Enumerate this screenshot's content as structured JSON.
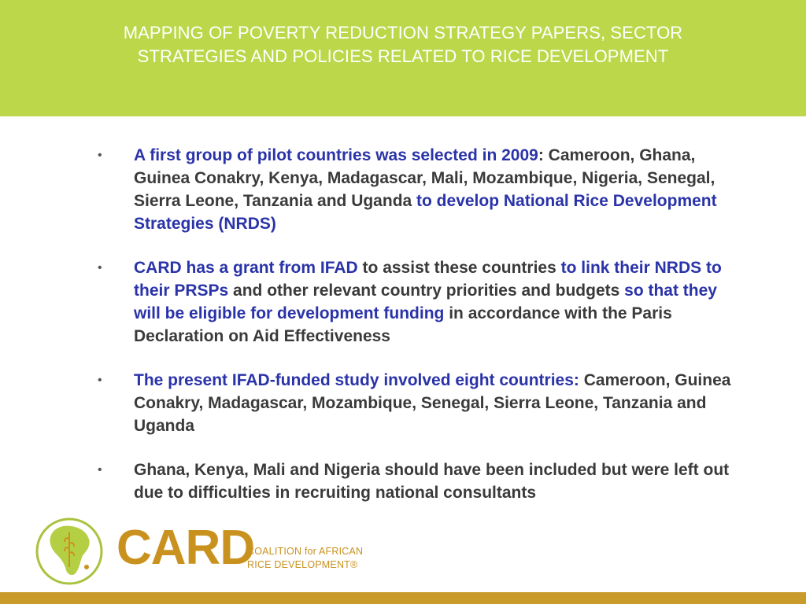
{
  "slide": {
    "title_lines": [
      "MAPPING OF POVERTY REDUCTION STRATEGY PAPERS, SECTOR",
      "STRATEGIES AND POLICIES RELATED TO RICE DEVELOPMENT"
    ],
    "bullet_symbol": "•",
    "bullets": [
      {
        "segments": [
          {
            "text": "A first group of pilot countries was selected in 2009",
            "style": "blue"
          },
          {
            "text": ":  Cameroon, Ghana, Guinea Conakry, Kenya, Madagascar, Mali, Mozambique, Nigeria, Senegal, Sierra Leone, Tanzania and Uganda ",
            "style": "dark"
          },
          {
            "text": "to develop National Rice Development Strategies (NRDS)",
            "style": "blue"
          }
        ]
      },
      {
        "segments": [
          {
            "text": "CARD has a grant from IFAD",
            "style": "blue"
          },
          {
            "text": " to assist these countries ",
            "style": "dark"
          },
          {
            "text": "to link their NRDS to their PRSPs",
            "style": "blue"
          },
          {
            "text": " and other relevant country priorities and budgets ",
            "style": "dark"
          },
          {
            "text": "so that they will be eligible for development funding",
            "style": "blue"
          },
          {
            "text": " in accordance with the Paris Declaration on Aid Effectiveness",
            "style": "dark"
          }
        ]
      },
      {
        "segments": [
          {
            "text": "The present IFAD-funded study involved eight countries:",
            "style": "blue"
          },
          {
            "text": " Cameroon, Guinea Conakry, Madagascar, Mozambique, Senegal, Sierra Leone, Tanzania and Uganda",
            "style": "dark"
          }
        ]
      },
      {
        "segments": [
          {
            "text": "Ghana, Kenya, Mali and Nigeria should have been included but were left out due to difficulties in recruiting national consultants",
            "style": "dark"
          }
        ]
      }
    ]
  },
  "logo": {
    "wordmark": "CARD",
    "tagline_lines": [
      "COALITION for AFRICAN",
      "RICE DEVELOPMENT®"
    ],
    "emblem_icon": "africa-rice-emblem-icon"
  },
  "colors": {
    "title_band": "#bcd84a",
    "body_blue": "#2a33a8",
    "body_dark": "#3a3a3a",
    "logo_gold": "#c9921f",
    "footer_bar": "#c89b2a"
  }
}
